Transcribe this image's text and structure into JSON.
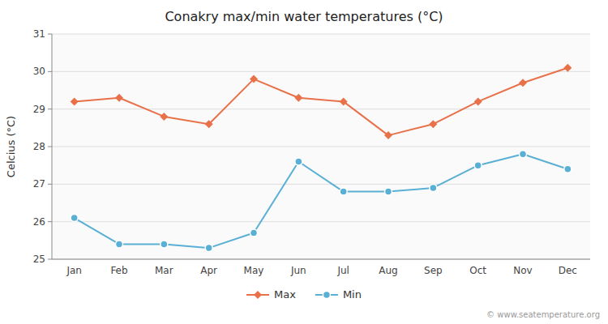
{
  "chart_data": {
    "type": "line",
    "title": "Conakry max/min water temperatures (°C)",
    "y_label": "Celcius (°C)",
    "categories": [
      "Jan",
      "Feb",
      "Mar",
      "Apr",
      "May",
      "Jun",
      "Jul",
      "Aug",
      "Sep",
      "Oct",
      "Nov",
      "Dec"
    ],
    "series": [
      {
        "name": "Max",
        "color": "#e8714a",
        "marker": "diamond",
        "line_style": "solid",
        "values": [
          29.2,
          29.3,
          28.8,
          28.6,
          29.8,
          29.3,
          29.2,
          28.3,
          28.6,
          29.2,
          29.7,
          30.1
        ]
      },
      {
        "name": "Min",
        "color": "#5aafd4",
        "marker": "circle",
        "line_style": "solid",
        "values": [
          26.1,
          25.4,
          25.4,
          25.3,
          25.7,
          27.6,
          26.8,
          26.8,
          26.9,
          27.5,
          27.8,
          27.4
        ]
      }
    ],
    "ylim": [
      25.0,
      31.0
    ],
    "yticks": [
      25,
      26,
      27,
      28,
      29,
      30,
      31
    ],
    "grid": true,
    "legend": "bottom",
    "annotations": [
      "© www.seatemperature.org"
    ]
  }
}
